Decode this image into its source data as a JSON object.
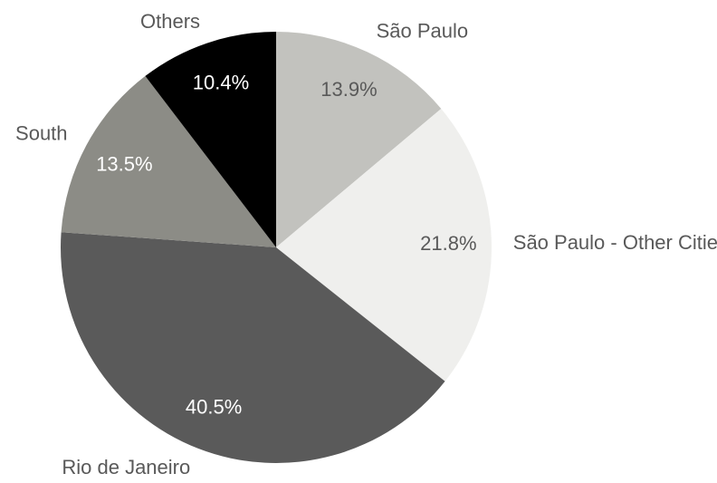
{
  "chart_data": {
    "type": "pie",
    "categories": [
      "São Paulo",
      "São Paulo - Other Cities",
      "Rio de Janeiro",
      "South",
      "Others"
    ],
    "values": [
      13.9,
      21.8,
      40.5,
      13.5,
      10.4
    ],
    "value_labels": [
      "13.9%",
      "21.8%",
      "40.5%",
      "13.5%",
      "10.4%"
    ],
    "colors": [
      "#c2c2be",
      "#efefed",
      "#5a5a5a",
      "#8c8c86",
      "#000000"
    ]
  }
}
